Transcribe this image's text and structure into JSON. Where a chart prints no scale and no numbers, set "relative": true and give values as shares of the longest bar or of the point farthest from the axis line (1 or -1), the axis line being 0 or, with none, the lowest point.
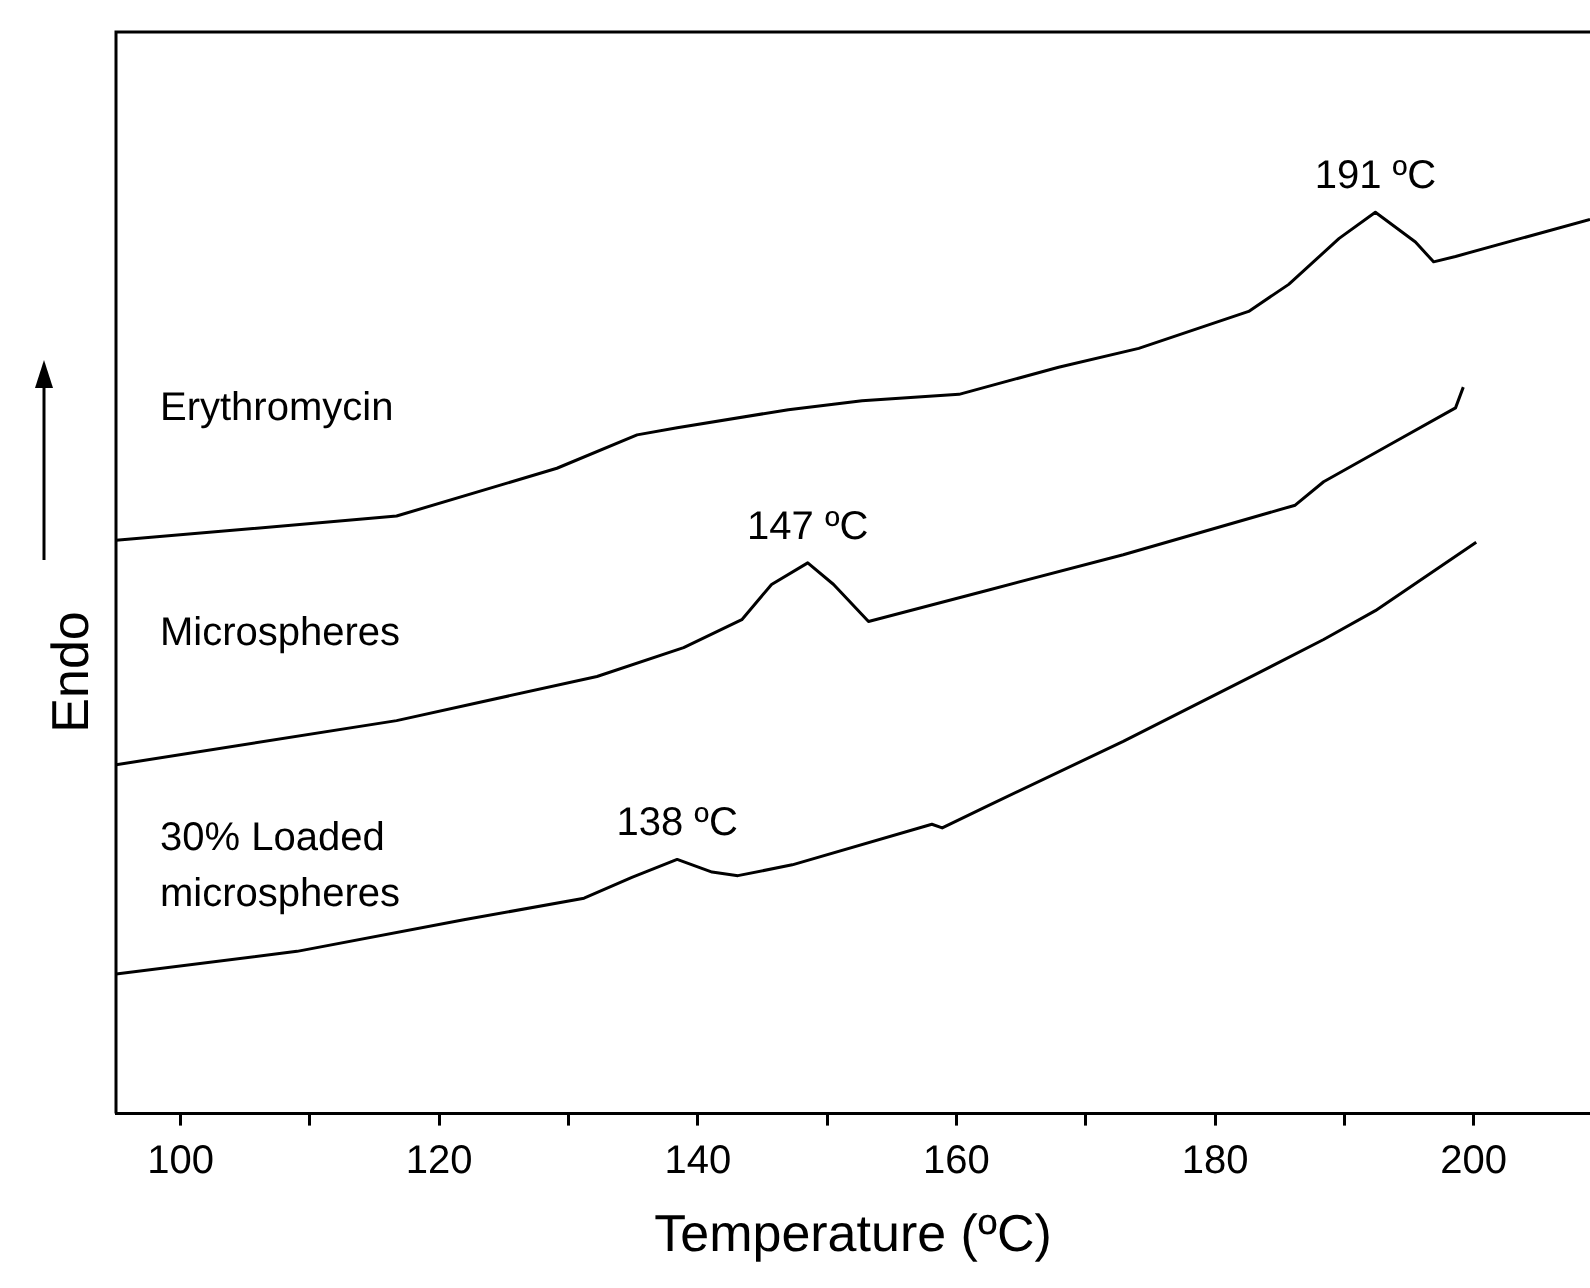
{
  "chart_data": {
    "type": "line",
    "relative": true,
    "xlabel": "Temperature (ºC)",
    "ylabel": "Endo",
    "xlim": [
      95,
      209
    ],
    "xticks": [
      100,
      {
        "value": 110,
        "label": null
      },
      120,
      {
        "value": 130,
        "label": null
      },
      140,
      {
        "value": 150,
        "label": null
      },
      160,
      {
        "value": 170,
        "label": null
      },
      180,
      {
        "value": 190,
        "label": null
      },
      200
    ],
    "legend": false,
    "grid": false,
    "annotations": [
      {
        "text": "191 ºC",
        "x": 192.4,
        "y": 1
      },
      {
        "text": "147 ºC",
        "x": 148.5,
        "y": 0.611
      },
      {
        "text": "138 ºC",
        "x": 138.4,
        "y": 0.282
      }
    ],
    "series": [
      {
        "name": "Erythromycin",
        "color": "#000000",
        "x": [
          95,
          116.7,
          129.1,
          135.3,
          138.4,
          147,
          152.7,
          160.2,
          167.9,
          174.1,
          182.6,
          185.7,
          189.6,
          192.4,
          195.5,
          196.9,
          198.6,
          209
        ],
        "values": [
          0.636,
          0.663,
          0.716,
          0.753,
          0.761,
          0.781,
          0.791,
          0.798,
          0.828,
          0.849,
          0.89,
          0.92,
          0.971,
          1,
          0.967,
          0.945,
          0.951,
          0.992
        ]
      },
      {
        "name": "Microspheres",
        "color": "#000000",
        "x": [
          95,
          116.7,
          132.2,
          138.9,
          143.4,
          145.7,
          148.5,
          150.5,
          153.2,
          162.5,
          172.9,
          186.2,
          188.4,
          193.5,
          198.6,
          199.2
        ],
        "values": [
          0.387,
          0.436,
          0.485,
          0.517,
          0.548,
          0.587,
          0.611,
          0.587,
          0.546,
          0.581,
          0.62,
          0.675,
          0.701,
          0.742,
          0.783,
          0.806
        ]
      },
      {
        "name": "30% Loaded microspheres",
        "color": "#000000",
        "x": [
          95,
          109,
          121.9,
          131.2,
          134.9,
          138.4,
          141.1,
          143.1,
          147.3,
          158.1,
          158.9,
          162.5,
          172.9,
          183.1,
          188.4,
          192.4,
          200.2
        ],
        "values": [
          0.155,
          0.18,
          0.215,
          0.239,
          0.262,
          0.282,
          0.268,
          0.264,
          0.276,
          0.321,
          0.317,
          0.342,
          0.413,
          0.487,
          0.526,
          0.558,
          0.634
        ]
      }
    ]
  }
}
